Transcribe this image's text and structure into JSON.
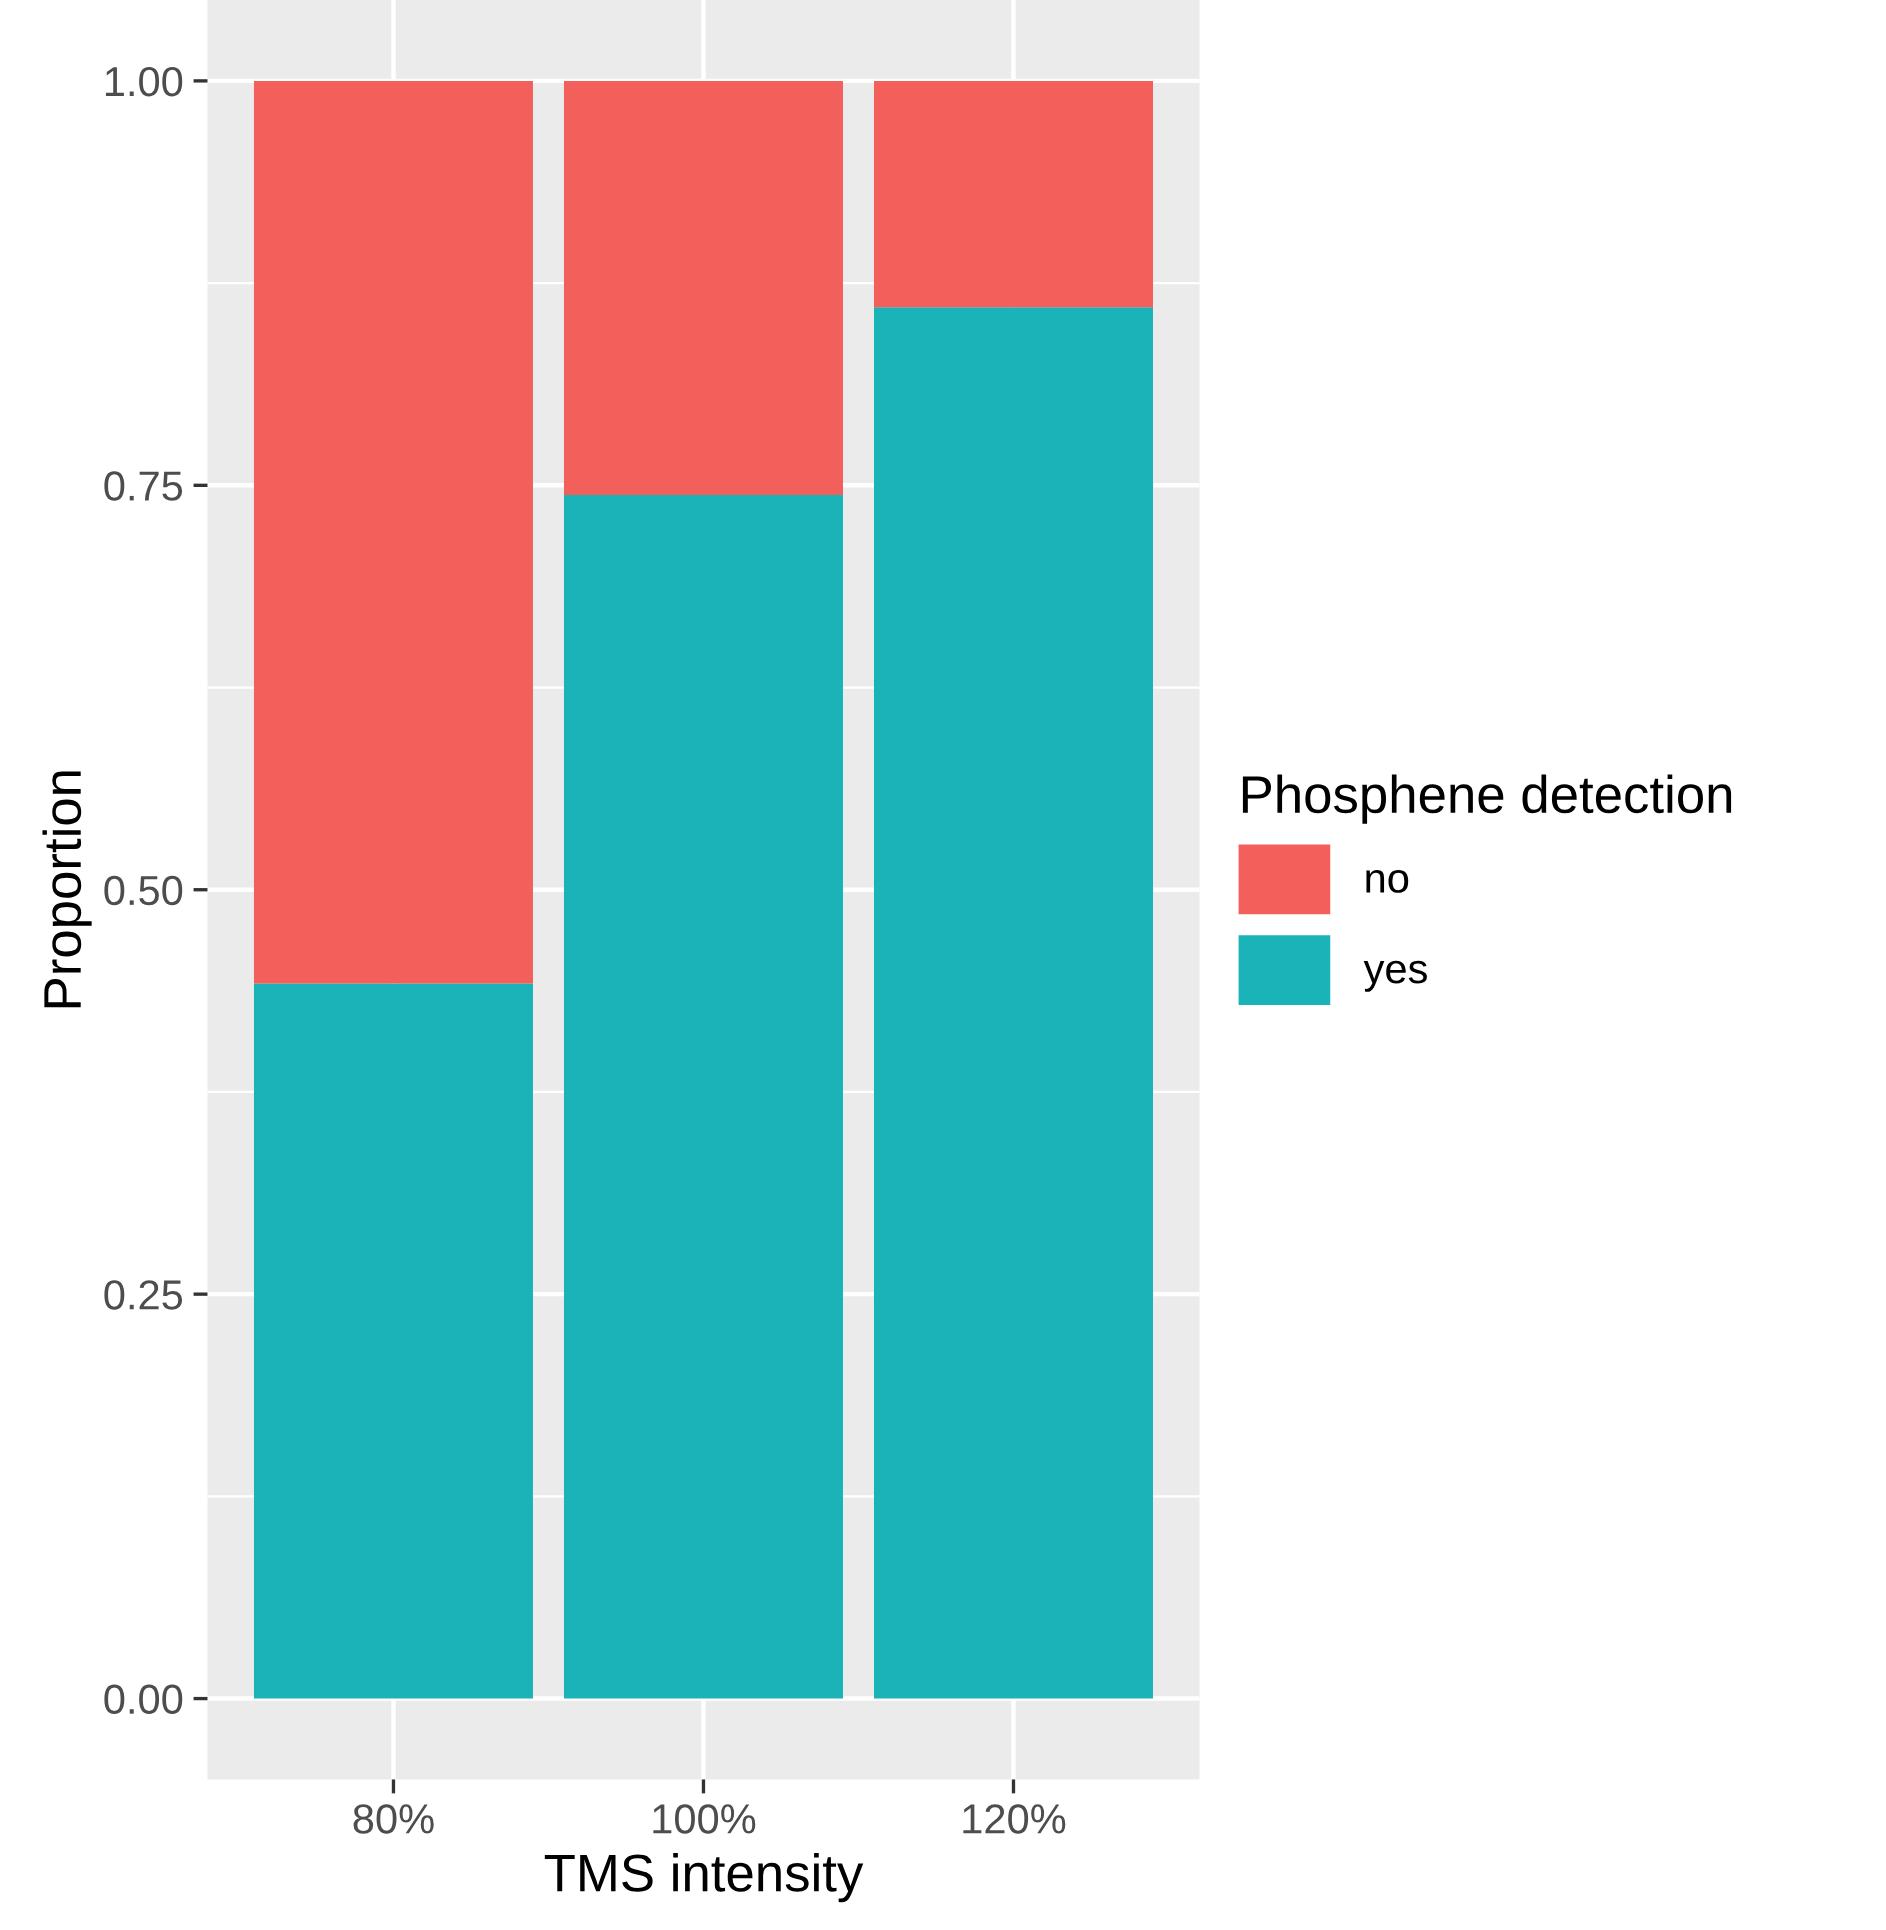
{
  "chart_data": {
    "type": "bar",
    "xlabel": "TMS intensity",
    "ylabel": "Proportion",
    "legend_title": "Phosphene detection",
    "categories": [
      "80%",
      "100%",
      "120%"
    ],
    "series": [
      {
        "name": "yes",
        "color": "#1ab3b8",
        "values": [
          0.442,
          0.744,
          0.86
        ]
      },
      {
        "name": "no",
        "color": "#f35f5b",
        "values": [
          0.558,
          0.256,
          0.14
        ]
      }
    ],
    "stacked": true,
    "ylim": [
      -0.05,
      1.05
    ],
    "yticks": [
      {
        "value": 0,
        "label": "0.00"
      },
      {
        "value": 0.25,
        "label": "0.25"
      },
      {
        "value": 0.5,
        "label": "0.50"
      },
      {
        "value": 0.75,
        "label": "0.75"
      },
      {
        "value": 1,
        "label": "1.00"
      }
    ],
    "grid": true,
    "legend": "right"
  }
}
